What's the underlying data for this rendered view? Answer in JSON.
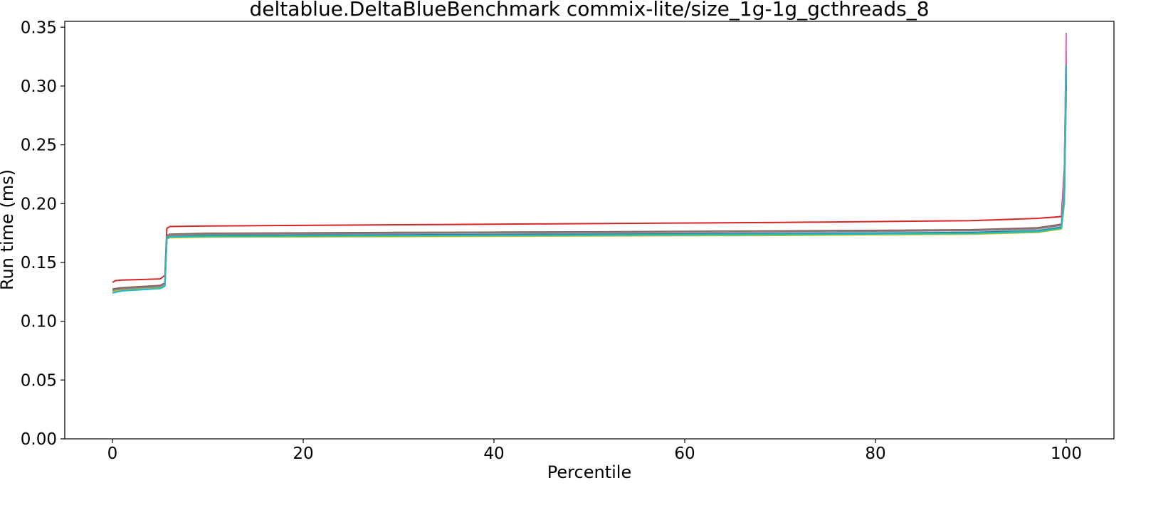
{
  "chart_data": {
    "type": "line",
    "title": "deltablue.DeltaBlueBenchmark commix-lite/size_1g-1g_gcthreads_8",
    "xlabel": "Percentile",
    "ylabel": "Run time (ms)",
    "xlim": [
      -5,
      105
    ],
    "ylim": [
      0.0,
      0.355
    ],
    "xticks": [
      0,
      20,
      40,
      60,
      80,
      100
    ],
    "yticks": [
      0.0,
      0.05,
      0.1,
      0.15,
      0.2,
      0.25,
      0.3,
      0.35
    ],
    "xtick_labels": [
      "0",
      "20",
      "40",
      "60",
      "80",
      "100"
    ],
    "ytick_labels": [
      "0.00",
      "0.05",
      "0.10",
      "0.15",
      "0.20",
      "0.25",
      "0.30",
      "0.35"
    ],
    "grid": false,
    "legend": false,
    "series": [
      {
        "color": "#1f77b4",
        "x": [
          0,
          1,
          3,
          5,
          5.5,
          5.7,
          6,
          10,
          30,
          50,
          70,
          90,
          97,
          99.5,
          99.8,
          100
        ],
        "y": [
          0.126,
          0.127,
          0.128,
          0.129,
          0.131,
          0.171,
          0.1725,
          0.173,
          0.1735,
          0.174,
          0.1745,
          0.1755,
          0.177,
          0.18,
          0.2,
          0.31
        ]
      },
      {
        "color": "#ff7f0e",
        "x": [
          0,
          1,
          3,
          5,
          5.5,
          5.7,
          6,
          10,
          30,
          50,
          70,
          90,
          97,
          99.5,
          99.8,
          100
        ],
        "y": [
          0.1255,
          0.1265,
          0.1275,
          0.1285,
          0.1305,
          0.17,
          0.1715,
          0.172,
          0.1725,
          0.173,
          0.1735,
          0.1745,
          0.176,
          0.179,
          0.21,
          0.322
        ]
      },
      {
        "color": "#2ca02c",
        "x": [
          0,
          1,
          3,
          5,
          5.5,
          5.7,
          6,
          10,
          30,
          50,
          70,
          90,
          97,
          99.5,
          99.8,
          100
        ],
        "y": [
          0.1258,
          0.1268,
          0.1278,
          0.1288,
          0.1308,
          0.1705,
          0.172,
          0.1725,
          0.173,
          0.1735,
          0.174,
          0.175,
          0.1765,
          0.1795,
          0.205,
          0.305
        ]
      },
      {
        "color": "#d62728",
        "x": [
          0,
          0.3,
          1,
          3,
          5,
          5.5,
          5.7,
          6,
          10,
          30,
          50,
          70,
          90,
          97,
          99.5,
          99.8,
          100
        ],
        "y": [
          0.133,
          0.1345,
          0.135,
          0.1355,
          0.136,
          0.139,
          0.179,
          0.1805,
          0.181,
          0.182,
          0.183,
          0.184,
          0.1855,
          0.1875,
          0.189,
          0.23,
          0.33
        ]
      },
      {
        "color": "#9467bd",
        "x": [
          0,
          1,
          3,
          5,
          5.5,
          5.7,
          6,
          10,
          30,
          50,
          70,
          90,
          97,
          99.5,
          99.8,
          100
        ],
        "y": [
          0.1272,
          0.1282,
          0.1292,
          0.1302,
          0.1322,
          0.1725,
          0.1738,
          0.1745,
          0.1752,
          0.1758,
          0.1765,
          0.1775,
          0.179,
          0.182,
          0.22,
          0.345
        ]
      },
      {
        "color": "#8c564b",
        "x": [
          0,
          1,
          3,
          5,
          5.5,
          5.7,
          6,
          10,
          30,
          50,
          70,
          90,
          97,
          99.5,
          99.8,
          100
        ],
        "y": [
          0.1275,
          0.1285,
          0.1295,
          0.1305,
          0.1325,
          0.1728,
          0.174,
          0.1748,
          0.1755,
          0.176,
          0.1768,
          0.1778,
          0.1795,
          0.1825,
          0.215,
          0.3
        ]
      },
      {
        "color": "#e377c2",
        "x": [
          0,
          1,
          3,
          5,
          5.5,
          5.7,
          6,
          10,
          30,
          50,
          70,
          90,
          97,
          99.5,
          99.8,
          100
        ],
        "y": [
          0.1265,
          0.1275,
          0.1285,
          0.1295,
          0.1315,
          0.172,
          0.1732,
          0.174,
          0.1747,
          0.1752,
          0.176,
          0.177,
          0.1785,
          0.1815,
          0.225,
          0.344
        ]
      },
      {
        "color": "#7f7f7f",
        "x": [
          0,
          1,
          3,
          5,
          5.5,
          5.7,
          6,
          10,
          30,
          50,
          70,
          90,
          97,
          99.5,
          99.8,
          100
        ],
        "y": [
          0.1268,
          0.1278,
          0.1288,
          0.1298,
          0.1318,
          0.1722,
          0.1735,
          0.1742,
          0.175,
          0.1755,
          0.1762,
          0.1772,
          0.1788,
          0.1818,
          0.21,
          0.29
        ]
      },
      {
        "color": "#bcbd22",
        "x": [
          0,
          1,
          3,
          5,
          5.5,
          5.7,
          6,
          10,
          30,
          50,
          70,
          90,
          97,
          99.5,
          99.8,
          100
        ],
        "y": [
          0.1252,
          0.1262,
          0.1272,
          0.1282,
          0.1302,
          0.1698,
          0.171,
          0.1715,
          0.172,
          0.1725,
          0.173,
          0.174,
          0.1755,
          0.1785,
          0.2,
          0.295
        ]
      },
      {
        "color": "#17becf",
        "x": [
          0,
          1,
          3,
          5,
          5.5,
          5.7,
          6,
          10,
          30,
          50,
          70,
          90,
          97,
          99.5,
          99.8,
          100
        ],
        "y": [
          0.124,
          0.1258,
          0.1268,
          0.1278,
          0.1298,
          0.1702,
          0.1718,
          0.1722,
          0.1728,
          0.1733,
          0.1738,
          0.1748,
          0.1762,
          0.1792,
          0.205,
          0.318
        ]
      }
    ]
  }
}
